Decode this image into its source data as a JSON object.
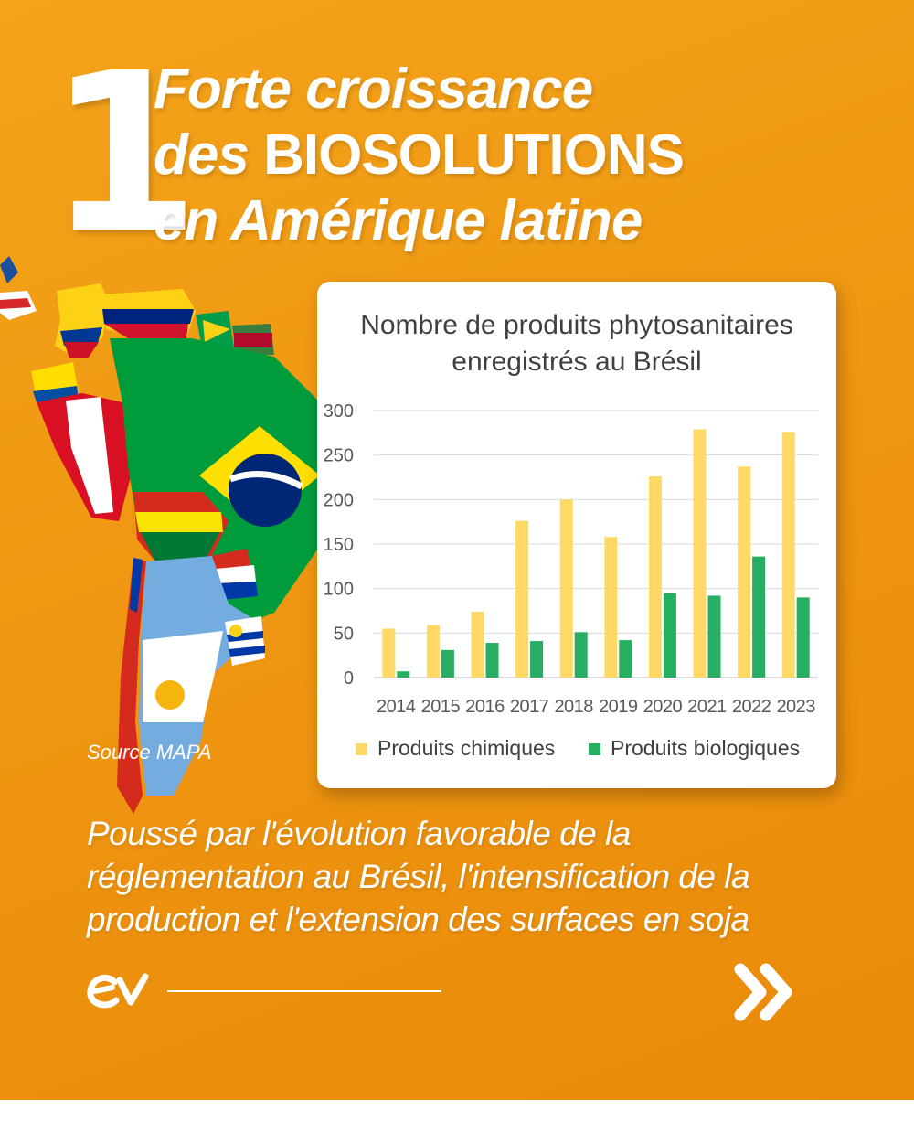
{
  "headline": {
    "number": "1",
    "line1": "Forte croissance",
    "line2_prefix": "des ",
    "line2_caps": "BIOSOLUTIONS",
    "line3": "en Amérique latine"
  },
  "source_label": "Source MAPA",
  "subtitle": "Poussé par l'évolution favorable de la réglementation au Brésil, l'intensification de la production et l'extension des surfaces en soja",
  "icons": {
    "logo": "ev-logo-icon",
    "next": "double-chevron-right-icon"
  },
  "colors": {
    "background": "#ef9712",
    "chimiques": "#ffd966",
    "biologiques": "#27ae60"
  },
  "chart_data": {
    "type": "bar",
    "title_line1": "Nombre de produits phytosanitaires",
    "title_line2": "enregistrés au Brésil",
    "categories": [
      "2014",
      "2015",
      "2016",
      "2017",
      "2018",
      "2019",
      "2020",
      "2021",
      "2022",
      "2023"
    ],
    "series": [
      {
        "name": "Produits chimiques",
        "color": "#ffd966",
        "values": [
          55,
          59,
          74,
          176,
          200,
          158,
          226,
          279,
          237,
          276
        ]
      },
      {
        "name": "Produits biologiques",
        "color": "#27ae60",
        "values": [
          7,
          31,
          39,
          41,
          51,
          42,
          95,
          92,
          136,
          90
        ]
      }
    ],
    "y_ticks": [
      "0",
      "50",
      "100",
      "150",
      "200",
      "250",
      "300"
    ],
    "ylim": [
      0,
      300
    ],
    "grid": true,
    "legend": "bottom"
  }
}
